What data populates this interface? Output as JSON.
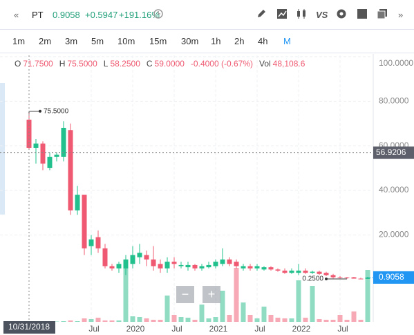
{
  "toolbar": {
    "nav_left": "«",
    "symbol": "PT",
    "price": "0.9058",
    "change": "+0.5947",
    "change_pct": "+191.16%",
    "compare": "VS",
    "nav_right": "»"
  },
  "intervals": [
    "1m",
    "2m",
    "3m",
    "5m",
    "10m",
    "15m",
    "30m",
    "1h",
    "2h",
    "4h",
    "M"
  ],
  "legend": [
    {
      "label": "O",
      "value": "71.7500"
    },
    {
      "label": "H",
      "value": "75.5000"
    },
    {
      "label": "L",
      "value": "58.2500"
    },
    {
      "label": "C",
      "value": "59.0000"
    },
    {
      "value": "-0.4000 (-0.67%)"
    },
    {
      "label": "Vol",
      "value": "48,108.6"
    }
  ],
  "zoom": {
    "out": "−",
    "in": "+"
  },
  "chart_data": {
    "type": "candlestick",
    "categories": [
      null,
      null,
      null,
      null,
      null,
      null,
      null,
      null,
      null,
      "Jul",
      null,
      null,
      null,
      null,
      null,
      "2020",
      null,
      null,
      null,
      null,
      null,
      "Jul",
      null,
      null,
      null,
      null,
      null,
      "2021",
      null,
      null,
      null,
      null,
      null,
      "Jul",
      null,
      null,
      null,
      null,
      null,
      "2022",
      null,
      null,
      null,
      null,
      null,
      "Jul",
      null,
      null,
      null,
      null
    ],
    "open": [
      71.75,
      59,
      61,
      50,
      55,
      55,
      67,
      31,
      38,
      15,
      19,
      14,
      6,
      5,
      5,
      7,
      10,
      11,
      9,
      7,
      5,
      8,
      6,
      5.5,
      6.5,
      5,
      5.5,
      6,
      7,
      9,
      8,
      5,
      6,
      5,
      4.5,
      5.5,
      4.5,
      4,
      3,
      3,
      4,
      3,
      3.5,
      3,
      2,
      1,
      0.9,
      1,
      0.4,
      0.3111
    ],
    "high": [
      75.5,
      63,
      62,
      57,
      57,
      71,
      70,
      42,
      38,
      20,
      22,
      16,
      7,
      8,
      11,
      15,
      16,
      13,
      15,
      9,
      10,
      10,
      8,
      8,
      7,
      7,
      8,
      9,
      14,
      10,
      9,
      7,
      7,
      7,
      6,
      6,
      5,
      5,
      5,
      7,
      5,
      4,
      4,
      3.5,
      2.5,
      1.5,
      1.2,
      1.2,
      0.8,
      1.2
    ],
    "low": [
      58.25,
      52,
      49,
      49,
      53,
      53,
      29,
      29,
      11,
      11,
      12,
      5,
      4,
      3,
      2,
      5,
      7,
      6,
      4,
      3,
      3,
      5,
      5,
      4,
      4,
      4,
      5,
      5,
      6,
      6,
      5,
      4,
      4,
      4,
      4,
      4,
      3.5,
      2.5,
      2.5,
      2,
      2.5,
      2.5,
      2,
      1.5,
      0.5,
      0.5,
      0.25,
      0.4,
      0.3,
      0.3
    ],
    "close": [
      59,
      61,
      52,
      55,
      56,
      68,
      31,
      38,
      14,
      18,
      14,
      6,
      5,
      7,
      9,
      11,
      12,
      9,
      6,
      5,
      8,
      7,
      6.5,
      6.5,
      5,
      6,
      6.5,
      8,
      9,
      7,
      6,
      6,
      5,
      6,
      5.5,
      4.5,
      4,
      3,
      4,
      4,
      3,
      3.5,
      2.5,
      2,
      1,
      0.8,
      0.7,
      0.4,
      0.3111,
      0.9058
    ],
    "volume": [
      48108.6,
      50000,
      50000,
      50000,
      50000,
      100000,
      200000,
      100000,
      500000,
      400000,
      600000,
      200000,
      200000,
      200000,
      8500000,
      800000,
      700000,
      500000,
      300000,
      300000,
      3800000,
      1000000,
      700000,
      600000,
      300000,
      2500000,
      500000,
      700000,
      4500000,
      1000000,
      7800000,
      2800000,
      1000000,
      500000,
      2200000,
      1000000,
      600000,
      500000,
      500000,
      6000000,
      600000,
      5200000,
      400000,
      300000,
      300000,
      1000000,
      300000,
      1500000,
      300000,
      7500000
    ],
    "up_color": "#22c08c",
    "down_color": "#ef5a72",
    "up_volume_color": "#8fdcc3",
    "down_volume_color": "#f7a9b5",
    "ylim": [
      -19,
      100.6
    ],
    "yticks": [
      {
        "value": 100,
        "label": "100.0000"
      },
      {
        "value": 80,
        "label": "80.0000"
      },
      {
        "value": 60,
        "label": "60.0000"
      },
      {
        "value": 40,
        "label": "40.0000"
      },
      {
        "value": 20,
        "label": "20.0000"
      }
    ],
    "grid": true,
    "crosshair": {
      "x_label": "10/31/2018",
      "price": 56.9206
    },
    "last_price": 0.9058,
    "max_marker": {
      "value": 75.5,
      "label": "75.5000"
    },
    "min_marker": {
      "value": 0.25,
      "label": "0.2500"
    }
  }
}
